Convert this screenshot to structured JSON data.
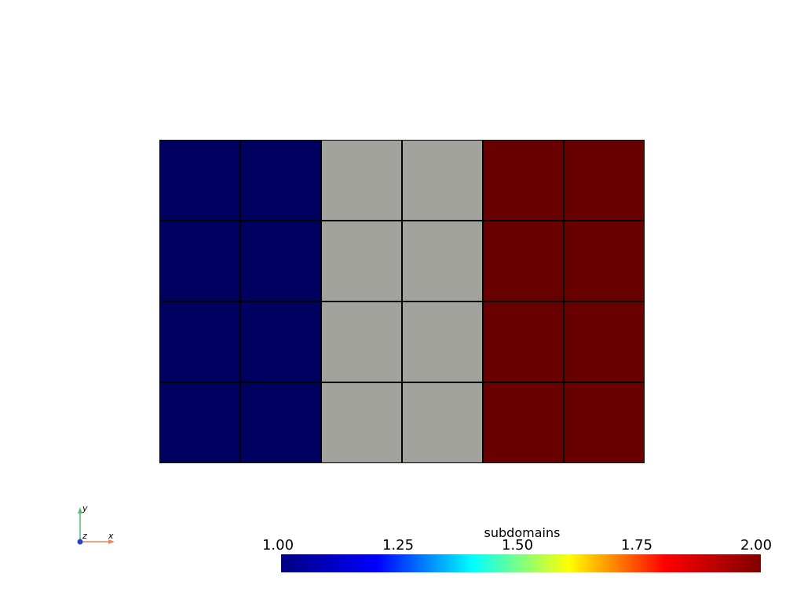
{
  "mesh": {
    "columns": 6,
    "rows": 4,
    "column_colors": [
      "#000060",
      "#000060",
      "#a3a39e",
      "#a3a39e",
      "#680000",
      "#680000"
    ],
    "grid_line_color": "#000000"
  },
  "axes": {
    "y_label": "y",
    "x_label": "x",
    "z_label": "z",
    "y_color": "#55bb77",
    "x_color": "#ee8855",
    "z_color": "#2244cc"
  },
  "colorbar": {
    "title": "subdomains",
    "ticks": [
      "1.00",
      "1.25",
      "1.50",
      "1.75",
      "2.00"
    ],
    "range": [
      1.0,
      2.0
    ],
    "colormap": [
      "#000080",
      "#0000ff",
      "#00ffff",
      "#ffff00",
      "#ff0000",
      "#800000"
    ]
  }
}
